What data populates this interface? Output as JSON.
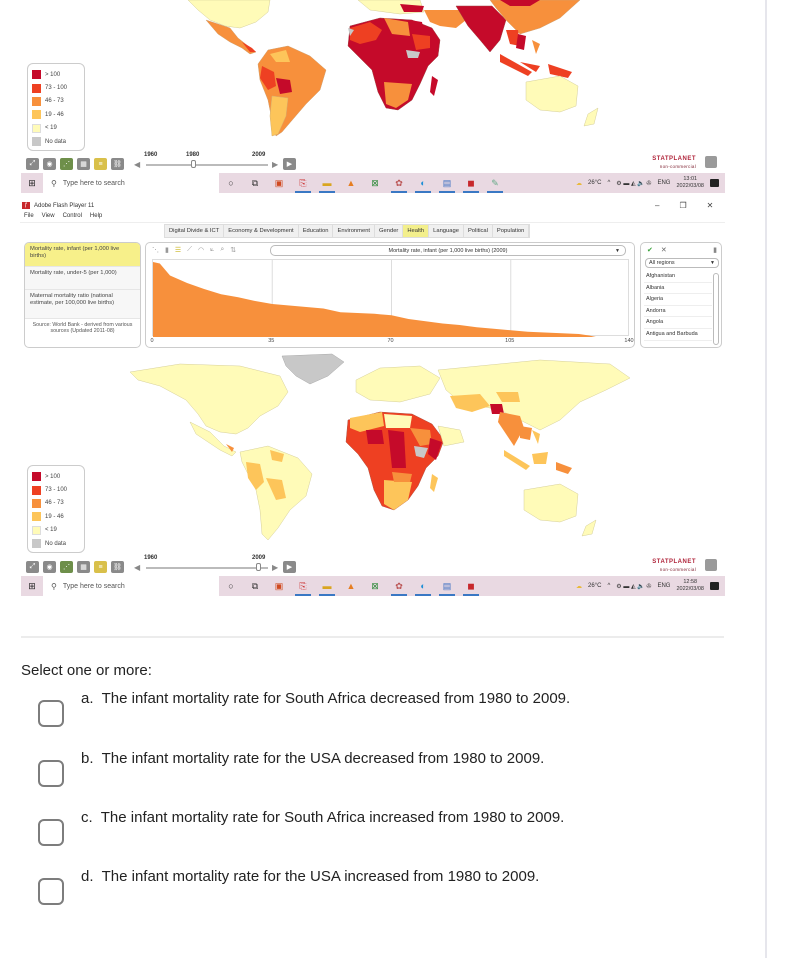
{
  "top_screenshot": {
    "legend": {
      "items": [
        {
          "label": "> 100",
          "color": "#c50a2a"
        },
        {
          "label": "73 - 100",
          "color": "#ee4022"
        },
        {
          "label": "46 - 73",
          "color": "#f7903c"
        },
        {
          "label": "19 - 46",
          "color": "#fdc55a"
        },
        {
          "label": "< 19",
          "color": "#fffbb8"
        },
        {
          "label": "No data",
          "color": "#c8c8c8"
        }
      ]
    },
    "slider": {
      "start_label": "1960",
      "mid_label": "1980",
      "end_label": "2009",
      "selected_year": "1980"
    },
    "statplanet": {
      "title": "STATPLANET",
      "subtitle": "non-commercial"
    },
    "taskbar": {
      "search_placeholder": "Type here to search",
      "weather": "26°C",
      "language": "ENG",
      "time": "13:01",
      "date": "2022/03/08"
    }
  },
  "flash_window": {
    "title": "Adobe Flash Player 11",
    "menu": [
      "File",
      "View",
      "Control",
      "Help"
    ],
    "window_controls": {
      "minimize": "–",
      "restore": "❐",
      "close": "✕"
    },
    "category_tabs": [
      {
        "label": "Digital Divide & ICT",
        "active": false
      },
      {
        "label": "Economy & Development",
        "active": false
      },
      {
        "label": "Education",
        "active": false
      },
      {
        "label": "Environment",
        "active": false
      },
      {
        "label": "Gender",
        "active": false
      },
      {
        "label": "Health",
        "active": true
      },
      {
        "label": "Language",
        "active": false
      },
      {
        "label": "Political",
        "active": false
      },
      {
        "label": "Population",
        "active": false
      }
    ],
    "indicators": [
      {
        "label": "Mortality rate, infant (per 1,000 live births)",
        "active": true
      },
      {
        "label": "Mortality rate, under-5 (per 1,000)",
        "active": false
      },
      {
        "label": "Maternal mortality ratio (national estimate, per 100,000 live births)",
        "active": false
      }
    ],
    "source": "Source: World Bank - derived from various sources (Updated 2011-08)",
    "chart_selector": "Mortality rate, infant (per 1,000 live births) (2009)",
    "region_panel": {
      "check": "✔",
      "clear": "✕",
      "trash": "🗑",
      "region_select": "All regions",
      "countries": [
        "Afghanistan",
        "Albania",
        "Algeria",
        "Andorra",
        "Angola",
        "Antigua and Barbuda"
      ]
    }
  },
  "chart_data": {
    "type": "area",
    "title": "Mortality rate, infant (per 1,000 live births) (2009)",
    "xlabel": "",
    "ylabel": "",
    "x_ticks": [
      0,
      35,
      70,
      105,
      140
    ],
    "xlim": [
      0,
      140
    ],
    "color": "#f7903c",
    "description": "Countries sorted by descending infant mortality rate",
    "x": [
      0,
      2,
      5,
      10,
      15,
      20,
      25,
      30,
      35,
      40,
      45,
      50,
      55,
      60,
      65,
      70,
      75,
      80,
      85,
      90,
      95,
      100,
      105,
      110,
      115,
      120,
      125,
      128,
      130
    ],
    "values": [
      100,
      98,
      82,
      72,
      64,
      57,
      53,
      48,
      44,
      42,
      40,
      38,
      33,
      32,
      31,
      29,
      24,
      21,
      18,
      16,
      13,
      11,
      9,
      7,
      6,
      5,
      4,
      2,
      0
    ]
  },
  "bottom_screenshot": {
    "legend": {
      "items": [
        {
          "label": "> 100",
          "color": "#c50a2a"
        },
        {
          "label": "73 - 100",
          "color": "#ee4022"
        },
        {
          "label": "46 - 73",
          "color": "#f7903c"
        },
        {
          "label": "19 - 46",
          "color": "#fdc55a"
        },
        {
          "label": "< 19",
          "color": "#fffbb8"
        },
        {
          "label": "No data",
          "color": "#c8c8c8"
        }
      ]
    },
    "slider": {
      "start_label": "1960",
      "end_label": "2009",
      "selected_year": "2009"
    },
    "statplanet": {
      "title": "STATPLANET",
      "subtitle": "non-commercial"
    },
    "taskbar": {
      "search_placeholder": "Type here to search",
      "weather": "26°C",
      "language": "ENG",
      "time": "12:58",
      "date": "2022/03/08"
    }
  },
  "quiz": {
    "prompt": "Select one or more:",
    "options": [
      {
        "letter": "a.",
        "text": "The infant mortality rate for South Africa decreased from 1980 to 2009.",
        "checked": false
      },
      {
        "letter": "b.",
        "text": "The infant mortality rate for the USA decreased from 1980 to 2009.",
        "checked": false
      },
      {
        "letter": "c.",
        "text": "The infant mortality rate for South Africa increased from 1980 to 2009.",
        "checked": false
      },
      {
        "letter": "d.",
        "text": "The infant mortality rate for the USA increased from 1980 to 2009.",
        "checked": false
      }
    ]
  }
}
